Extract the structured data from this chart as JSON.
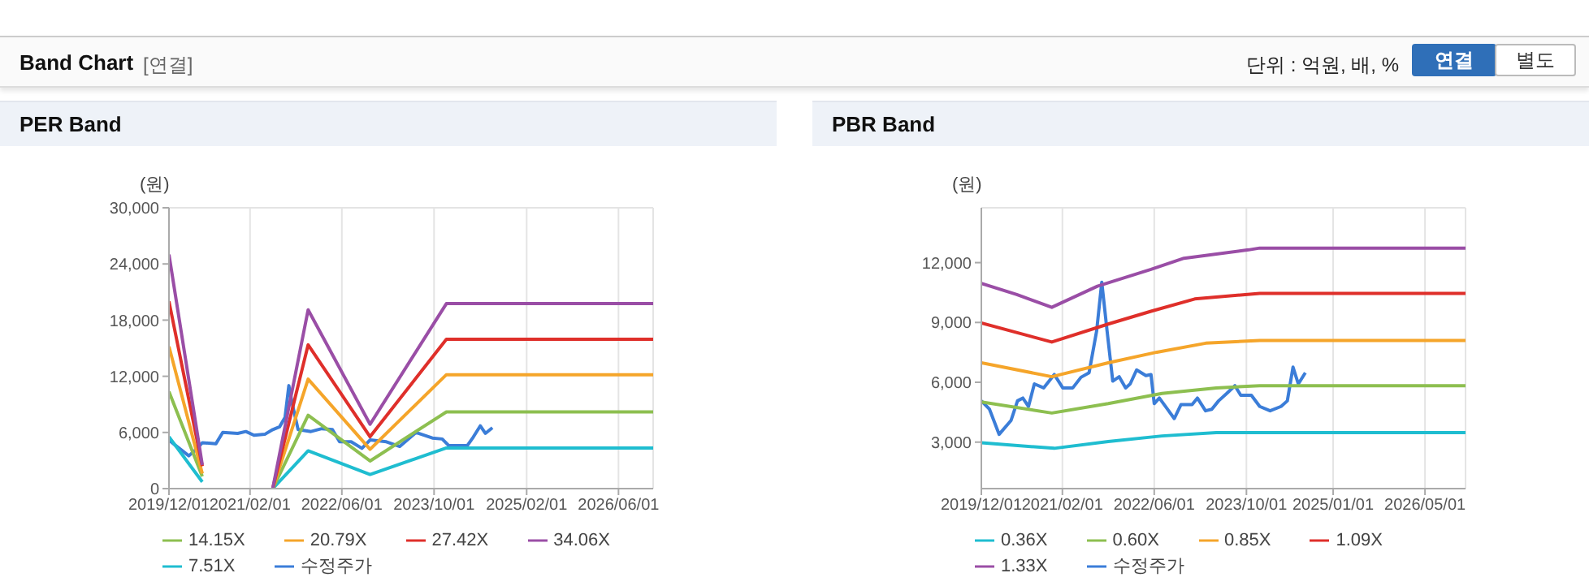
{
  "chart_data": [
    {
      "type": "other",
      "title": "Band Chart",
      "annotations": [
        "[연결]",
        "단위 : 억원, 배, %",
        "연결",
        "별도"
      ]
    },
    {
      "type": "line",
      "title": "PER Band",
      "ylabel": "(원)",
      "grid": true,
      "legend": "bottom",
      "marker": "none",
      "line_style": "solid",
      "xlim": [
        "2019-12-01",
        "2026-12-01"
      ],
      "xticks": [
        {
          "value": "2019-12-01",
          "label": "2019/12/01"
        },
        {
          "value": "2021-02-01",
          "label": "2021/02/01"
        },
        {
          "value": "2022-06-01",
          "label": "2022/06/01"
        },
        {
          "value": "2023-10-01",
          "label": "2023/10/01"
        },
        {
          "value": "2025-02-01",
          "label": "2025/02/01"
        },
        {
          "value": "2026-06-01",
          "label": "2026/06/01"
        }
      ],
      "ylim": [
        0,
        30000
      ],
      "yticks": [
        0,
        {
          "value": 6000,
          "label": "6,000"
        },
        {
          "value": 12000,
          "label": "12,000"
        },
        {
          "value": 18000,
          "label": "18,000"
        },
        {
          "value": 24000,
          "label": "24,000"
        },
        {
          "value": 30000,
          "label": "30,000"
        }
      ],
      "series": [
        {
          "name": "수정주가",
          "color": "#3b7dd8",
          "x": [
            "2019-12-01",
            "2020-01-05",
            "2020-03-15",
            "2020-04-28",
            "2020-05-25",
            "2020-08-05",
            "2020-09-10",
            "2020-11-28",
            "2021-01-10",
            "2021-02-22",
            "2021-04-20",
            "2021-06-01",
            "2021-07-07",
            "2021-08-05",
            "2021-08-25",
            "2021-09-15",
            "2021-10-13",
            "2021-12-20",
            "2022-02-15",
            "2022-04-12",
            "2022-05-20",
            "2022-07-20",
            "2022-09-15",
            "2022-10-28",
            "2023-01-22",
            "2023-04-03",
            "2023-06-28",
            "2023-09-22",
            "2023-11-13",
            "2023-12-17",
            "2024-03-25",
            "2024-04-25",
            "2024-06-01",
            "2024-06-28",
            "2024-08-04"
          ],
          "values": [
            5200,
            4600,
            3500,
            4300,
            4900,
            4800,
            6000,
            5900,
            6100,
            5700,
            5800,
            6300,
            6600,
            7600,
            11000,
            8800,
            6300,
            6100,
            6400,
            6300,
            5000,
            5000,
            4300,
            5200,
            5000,
            4500,
            6000,
            5400,
            5300,
            4600,
            4600,
            5500,
            6700,
            5900,
            6500
          ]
        },
        {
          "name": "7.51X",
          "color": "#1fbdd0",
          "x": [
            "2019-12-01",
            "2020-05-25",
            "2020-12-01",
            "2021-06-01",
            "2021-12-05",
            "2022-10-28",
            "2023-12-05",
            "2026-12-01"
          ],
          "values": [
            5540,
            720,
            null,
            0,
            4040,
            1510,
            4340,
            4340
          ]
        },
        {
          "name": "14.15X",
          "color": "#8dbf50",
          "x": [
            "2019-12-01",
            "2020-05-25",
            "2020-12-01",
            "2021-06-01",
            "2021-12-05",
            "2022-10-28",
            "2023-12-05",
            "2026-12-01"
          ],
          "values": [
            10360,
            1300,
            null,
            0,
            7830,
            2950,
            8190,
            8190
          ]
        },
        {
          "name": "20.79X",
          "color": "#f5a52a",
          "x": [
            "2019-12-01",
            "2020-05-25",
            "2020-12-01",
            "2021-06-01",
            "2021-12-05",
            "2022-10-28",
            "2023-12-05",
            "2026-12-01"
          ],
          "values": [
            15180,
            1600,
            null,
            0,
            11690,
            4200,
            12170,
            12170
          ]
        },
        {
          "name": "27.42X",
          "color": "#df2f2a",
          "x": [
            "2019-12-01",
            "2020-05-25",
            "2020-12-01",
            "2021-06-01",
            "2021-12-05",
            "2022-10-28",
            "2023-12-05",
            "2026-12-01"
          ],
          "values": [
            20000,
            2400,
            null,
            0,
            15360,
            5540,
            15960,
            15960
          ]
        },
        {
          "name": "34.06X",
          "color": "#9a4ea6",
          "x": [
            "2019-12-01",
            "2020-05-25",
            "2020-12-01",
            "2021-06-01",
            "2021-12-05",
            "2022-10-28",
            "2023-12-05",
            "2026-12-01"
          ],
          "values": [
            25000,
            2530,
            null,
            0,
            19100,
            6870,
            19760,
            19760
          ]
        }
      ]
    },
    {
      "type": "line",
      "title": "PBR Band",
      "ylabel": "(원)",
      "grid": true,
      "legend": "bottom",
      "marker": "none",
      "line_style": "solid",
      "xlim": [
        "2019-12-01",
        "2026-12-01"
      ],
      "xticks": [
        {
          "value": "2019-12-01",
          "label": "2019/12/01"
        },
        {
          "value": "2021-02-01",
          "label": "2021/02/01"
        },
        {
          "value": "2022-06-01",
          "label": "2022/06/01"
        },
        {
          "value": "2023-10-01",
          "label": "2023/10/01"
        },
        {
          "value": "2025-01-01",
          "label": "2025/01/01"
        },
        {
          "value": "2026-05-01",
          "label": "2026/05/01"
        }
      ],
      "ylim": [
        670,
        14750
      ],
      "yticks": [
        {
          "value": 3000,
          "label": "3,000"
        },
        {
          "value": 6000,
          "label": "6,000"
        },
        {
          "value": 9000,
          "label": "9,000"
        },
        {
          "value": 12000,
          "label": "12,000"
        }
      ],
      "series": [
        {
          "name": "수정주가",
          "color": "#3b7dd8",
          "x": [
            "2019-12-01",
            "2020-01-13",
            "2020-03-04",
            "2020-05-06",
            "2020-06-09",
            "2020-07-07",
            "2020-08-06",
            "2020-09-06",
            "2020-10-25",
            "2020-12-20",
            "2021-02-03",
            "2021-03-28",
            "2021-05-10",
            "2021-06-22",
            "2021-08-01",
            "2021-08-28",
            "2021-09-25",
            "2021-10-25",
            "2021-11-28",
            "2022-01-01",
            "2022-01-25",
            "2022-02-28",
            "2022-04-18",
            "2022-05-15",
            "2022-06-01",
            "2022-06-28",
            "2022-08-10",
            "2022-09-15",
            "2022-10-20",
            "2022-12-18",
            "2023-01-15",
            "2023-02-27",
            "2023-04-01",
            "2023-05-07",
            "2023-06-19",
            "2023-08-01",
            "2023-09-01",
            "2023-10-27",
            "2023-12-10",
            "2024-02-03",
            "2024-04-01",
            "2024-05-04",
            "2024-06-03",
            "2024-07-01",
            "2024-08-07"
          ],
          "values": [
            5070,
            4650,
            3390,
            4090,
            5070,
            5210,
            4790,
            5920,
            5720,
            6390,
            5720,
            5720,
            6250,
            6480,
            8580,
            11020,
            8580,
            6060,
            6280,
            5720,
            5920,
            6620,
            6340,
            6390,
            4930,
            5210,
            4650,
            4180,
            4880,
            4880,
            5210,
            4570,
            4650,
            5070,
            5440,
            5830,
            5350,
            5350,
            4790,
            4570,
            4790,
            5070,
            6760,
            5920,
            6480
          ]
        },
        {
          "name": "0.36X",
          "color": "#1fbdd0",
          "x": [
            "2019-12-01",
            "2020-12-20",
            "2021-10-01",
            "2022-07-12",
            "2023-04-25",
            "2026-12-01"
          ],
          "values": [
            2970,
            2690,
            3030,
            3310,
            3480,
            3480
          ]
        },
        {
          "name": "0.60X",
          "color": "#8dbf50",
          "x": [
            "2019-12-01",
            "2020-12-07",
            "2021-10-01",
            "2022-07-12",
            "2023-04-25",
            "2023-12-10",
            "2026-12-01"
          ],
          "values": [
            5020,
            4460,
            4930,
            5440,
            5720,
            5830,
            5830
          ]
        },
        {
          "name": "0.85X",
          "color": "#f5a52a",
          "x": [
            "2019-12-01",
            "2020-12-07",
            "2021-10-01",
            "2022-06-15",
            "2023-02-28",
            "2023-12-10",
            "2026-12-01"
          ],
          "values": [
            6980,
            6280,
            6980,
            7510,
            7960,
            8100,
            8100
          ]
        },
        {
          "name": "1.09X",
          "color": "#df2f2a",
          "x": [
            "2019-12-01",
            "2020-12-07",
            "2021-10-01",
            "2022-05-15",
            "2023-01-01",
            "2023-12-10",
            "2026-12-01"
          ],
          "values": [
            8970,
            8020,
            8920,
            9560,
            10180,
            10460,
            10460
          ]
        },
        {
          "name": "1.33X",
          "color": "#9a4ea6",
          "x": [
            "2019-12-01",
            "2020-06-05",
            "2020-12-07",
            "2021-08-05",
            "2022-05-15",
            "2022-11-05",
            "2023-10-12",
            "2023-12-10",
            "2026-12-01"
          ],
          "values": [
            10960,
            10400,
            9760,
            10820,
            11660,
            12220,
            12640,
            12730,
            12730
          ]
        }
      ]
    }
  ]
}
